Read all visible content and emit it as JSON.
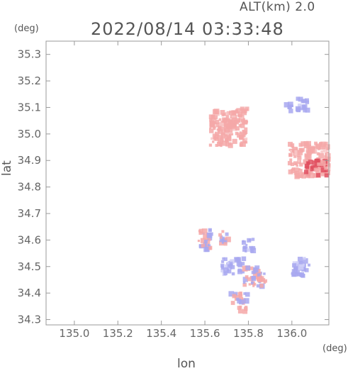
{
  "header": {
    "altitude_label": "ALT(km) 2.0",
    "timestamp": "2022/08/14 03:33:48"
  },
  "axes": {
    "y_unit": "(deg)",
    "x_unit": "(deg)",
    "x_label": "lon",
    "y_label": "lat"
  },
  "chart_data": {
    "type": "heatmap",
    "title": "2022/08/14 03:33:48",
    "subtitle": "ALT(km) 2.0",
    "xlabel": "lon",
    "ylabel": "lat",
    "xlim": [
      134.87,
      136.17
    ],
    "ylim": [
      34.28,
      35.35
    ],
    "x_ticks": [
      "135.0",
      "135.2",
      "135.4",
      "135.6",
      "135.8",
      "136.0"
    ],
    "x_tick_values": [
      135.0,
      135.2,
      135.4,
      135.6,
      135.8,
      136.0
    ],
    "y_ticks": [
      "35.3",
      "35.2",
      "35.1",
      "35.0",
      "34.9",
      "34.8",
      "34.7",
      "34.6",
      "34.5",
      "34.4",
      "34.3"
    ],
    "y_tick_values": [
      35.3,
      35.2,
      35.1,
      35.0,
      34.9,
      34.8,
      34.7,
      34.6,
      34.5,
      34.4,
      34.3
    ],
    "colors": {
      "positive": "#f4a8a8",
      "strong_positive": "#e05060",
      "negative": "#a8a8f0",
      "frame": "#888888"
    },
    "echo_regions": [
      {
        "lon": 135.71,
        "lat": 35.02,
        "lon_span": 0.17,
        "lat_span": 0.13,
        "sign": "positive"
      },
      {
        "lon": 135.76,
        "lat": 35.07,
        "lon_span": 0.07,
        "lat_span": 0.05,
        "sign": "positive"
      },
      {
        "lon": 136.08,
        "lat": 34.9,
        "lon_span": 0.18,
        "lat_span": 0.13,
        "sign": "positive"
      },
      {
        "lon": 136.11,
        "lat": 34.87,
        "lon_span": 0.1,
        "lat_span": 0.06,
        "sign": "strong_positive"
      },
      {
        "lon": 135.6,
        "lat": 34.6,
        "lon_span": 0.06,
        "lat_span": 0.08,
        "sign": "mixed"
      },
      {
        "lon": 135.69,
        "lat": 34.61,
        "lon_span": 0.04,
        "lat_span": 0.05,
        "sign": "mixed"
      },
      {
        "lon": 135.8,
        "lat": 34.58,
        "lon_span": 0.05,
        "lat_span": 0.05,
        "sign": "negative"
      },
      {
        "lon": 135.73,
        "lat": 34.5,
        "lon_span": 0.1,
        "lat_span": 0.06,
        "sign": "negative"
      },
      {
        "lon": 135.83,
        "lat": 34.46,
        "lon_span": 0.1,
        "lat_span": 0.07,
        "sign": "mixed"
      },
      {
        "lon": 136.04,
        "lat": 34.5,
        "lon_span": 0.08,
        "lat_span": 0.07,
        "sign": "negative"
      },
      {
        "lon": 135.76,
        "lat": 34.38,
        "lon_span": 0.08,
        "lat_span": 0.04,
        "sign": "mixed"
      },
      {
        "lon": 135.77,
        "lat": 34.34,
        "lon_span": 0.04,
        "lat_span": 0.02,
        "sign": "positive"
      },
      {
        "lon": 135.99,
        "lat": 35.1,
        "lon_span": 0.03,
        "lat_span": 0.03,
        "sign": "negative"
      },
      {
        "lon": 136.05,
        "lat": 35.11,
        "lon_span": 0.05,
        "lat_span": 0.05,
        "sign": "negative"
      }
    ]
  }
}
